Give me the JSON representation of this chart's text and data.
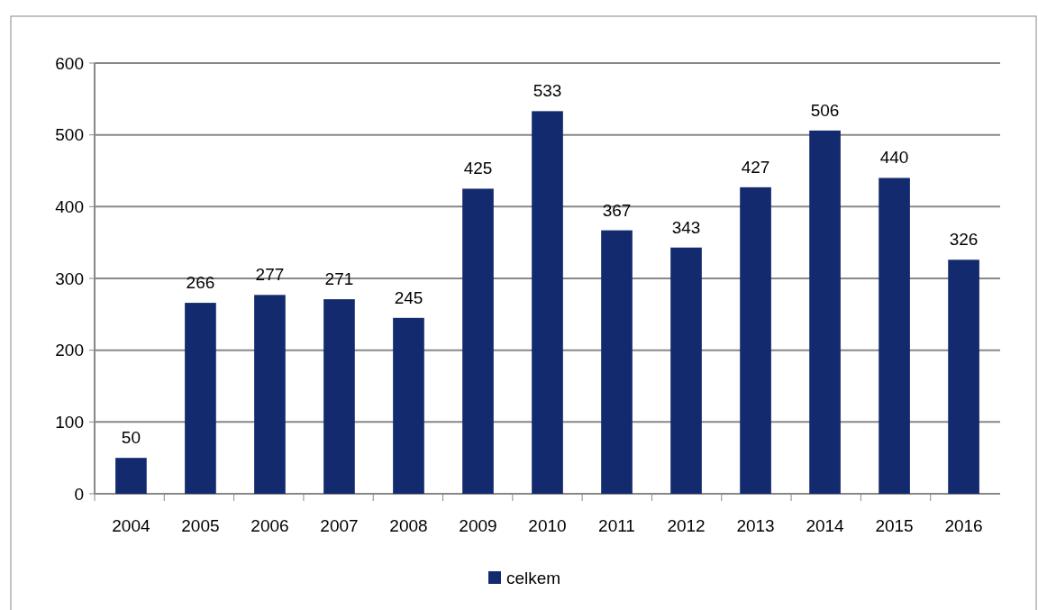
{
  "chart_data": {
    "type": "bar",
    "categories": [
      "2004",
      "2005",
      "2006",
      "2007",
      "2008",
      "2009",
      "2010",
      "2011",
      "2012",
      "2013",
      "2014",
      "2015",
      "2016"
    ],
    "series": [
      {
        "name": "celkem",
        "color": "#132a6e",
        "values": [
          50,
          266,
          277,
          271,
          245,
          425,
          533,
          367,
          343,
          427,
          506,
          440,
          326
        ]
      }
    ],
    "ylim": [
      0,
      600
    ],
    "yticks": [
      0,
      100,
      200,
      300,
      400,
      500,
      600
    ],
    "grid": "y",
    "data_labels": true,
    "legend": "bottom"
  }
}
